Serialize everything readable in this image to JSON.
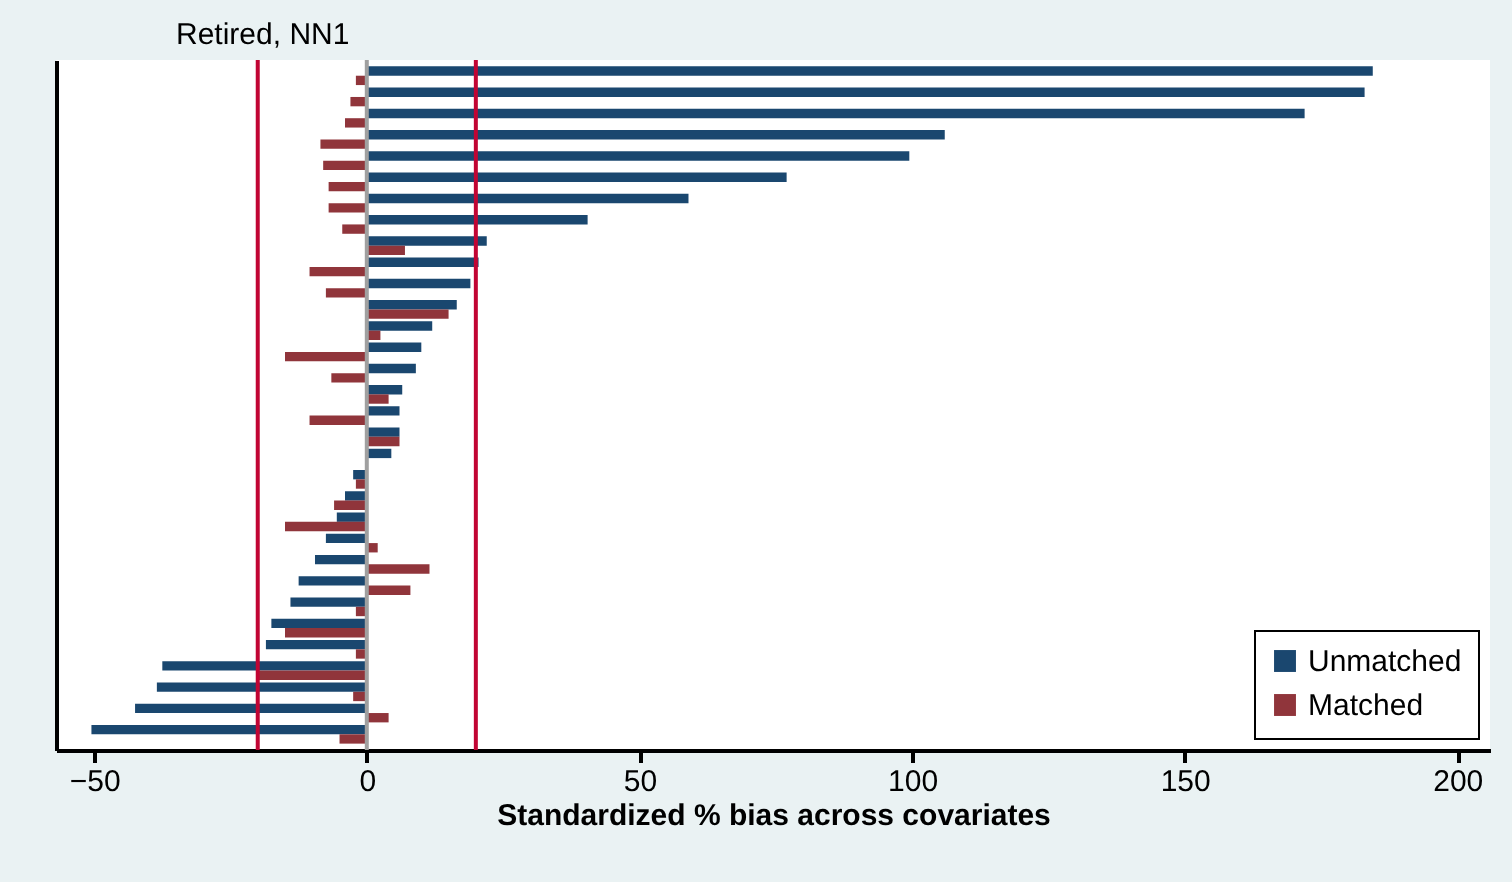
{
  "chart_data": {
    "type": "bar",
    "orientation": "horizontal",
    "title": "Retired, NN1",
    "xlabel": "Standardized % bias across covariates",
    "categories": [
      null,
      null,
      null,
      null,
      null,
      null,
      null,
      null,
      null,
      null,
      null,
      null,
      null,
      null,
      null,
      null,
      null,
      null,
      null,
      null,
      null,
      null,
      null,
      null,
      null,
      null,
      null,
      null,
      null,
      null,
      null,
      null
    ],
    "series": [
      {
        "name": "Unmatched",
        "color": "#1a476f",
        "values": [
          184.5,
          183,
          172,
          106,
          99.5,
          77,
          59,
          40.5,
          22,
          20.5,
          19,
          16.5,
          12,
          10,
          9,
          6.5,
          6,
          6,
          4.5,
          -2.5,
          -4,
          -5.5,
          -7.5,
          -9.5,
          -12.5,
          -14,
          -17.5,
          -18.5,
          -37.5,
          -38.5,
          -42.5,
          -50.5
        ]
      },
      {
        "name": "Matched",
        "color": "#90353b",
        "values": [
          -2,
          -3,
          -4,
          -8.5,
          -8,
          -7,
          -7,
          -4.5,
          7,
          -10.5,
          -7.5,
          15,
          2.5,
          -15,
          -6.5,
          4,
          -10.5,
          6,
          0,
          -2,
          -6,
          -15,
          2,
          11.5,
          8,
          -2,
          -15,
          -2,
          -20,
          -2.5,
          4,
          -5
        ]
      }
    ],
    "xlim": [
      -57,
      206
    ],
    "xticks": [
      -50,
      0,
      50,
      100,
      150,
      200
    ],
    "ref_lines": [
      {
        "axis": "x",
        "value": 0,
        "color": "#a0a0a0"
      },
      {
        "axis": "x",
        "value": -20,
        "color": "#c10534"
      },
      {
        "axis": "x",
        "value": 20,
        "color": "#c10534"
      }
    ],
    "legend": "bottom right",
    "tick_labels": "x"
  }
}
